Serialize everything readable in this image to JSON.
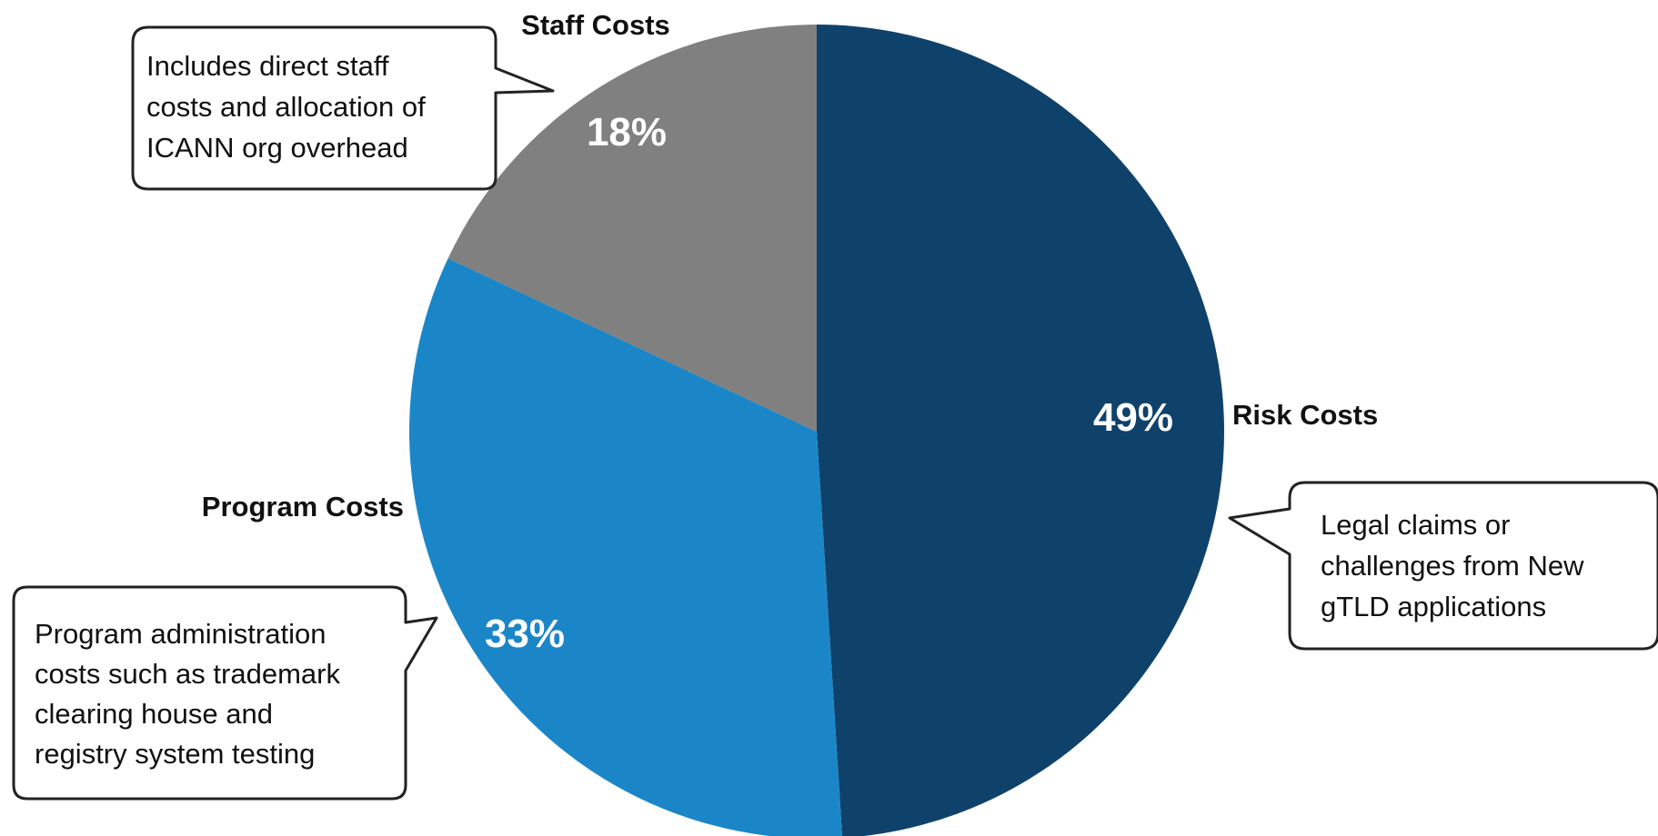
{
  "chart_data": {
    "type": "pie",
    "title": "",
    "start_angle_deg": 0,
    "direction": "clockwise",
    "slices": [
      {
        "label": "Risk Costs",
        "value": 49,
        "value_label": "49%",
        "color": "#0f426b"
      },
      {
        "label": "Program Costs",
        "value": 33,
        "value_label": "33%",
        "color": "#1b86c7"
      },
      {
        "label": "Staff Costs",
        "value": 18,
        "value_label": "18%",
        "color": "#808080"
      }
    ],
    "callouts": [
      {
        "slice": "Risk Costs",
        "lines": [
          "Legal claims or",
          "challenges from New",
          "gTLD applications"
        ]
      },
      {
        "slice": "Program Costs",
        "lines": [
          "Program administration",
          "costs such as trademark",
          "clearing house and",
          "registry system testing"
        ]
      },
      {
        "slice": "Staff Costs",
        "lines": [
          "Includes direct staff",
          "costs and allocation of",
          "ICANN org overhead"
        ]
      }
    ]
  }
}
